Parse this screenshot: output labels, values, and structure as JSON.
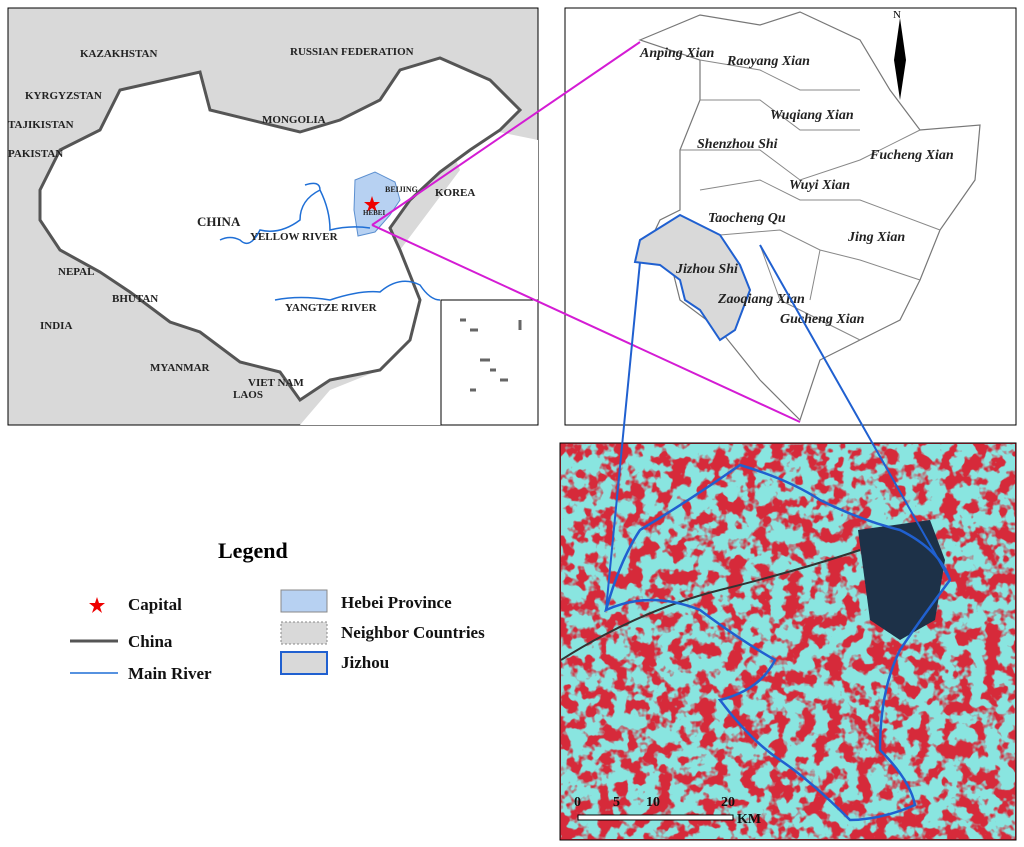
{
  "china_map": {
    "labels": [
      "KAZAKHSTAN",
      "RUSSIAN FEDERATION",
      "KYRGYZSTAN",
      "TAJIKISTAN",
      "PAKISTAN",
      "MONGOLIA",
      "CHINA",
      "KOREA",
      "BEIJING",
      "HEBEI",
      "YELLOW RIVER",
      "YANGTZE RIVER",
      "NEPAL",
      "BHUTAN",
      "INDIA",
      "MYANMAR",
      "VIET NAM",
      "LAOS"
    ]
  },
  "county_map": {
    "north": "N",
    "labels": [
      "Anping Xian",
      "Raoyang Xian",
      "Wuqiang Xian",
      "Shenzhou Shi",
      "Fucheng Xian",
      "Wuyi Xian",
      "Taocheng Qu",
      "Jing Xian",
      "Jizhou Shi",
      "Zaoqiang Xian",
      "Gucheng Xian"
    ]
  },
  "legend": {
    "title": "Legend",
    "items": [
      "Capital",
      "China",
      "Main River",
      "Hebei Province",
      "Neighbor Countries",
      "Jizhou"
    ]
  },
  "scale_bar": {
    "ticks": [
      0,
      5,
      10,
      20
    ],
    "unit": "KM"
  }
}
